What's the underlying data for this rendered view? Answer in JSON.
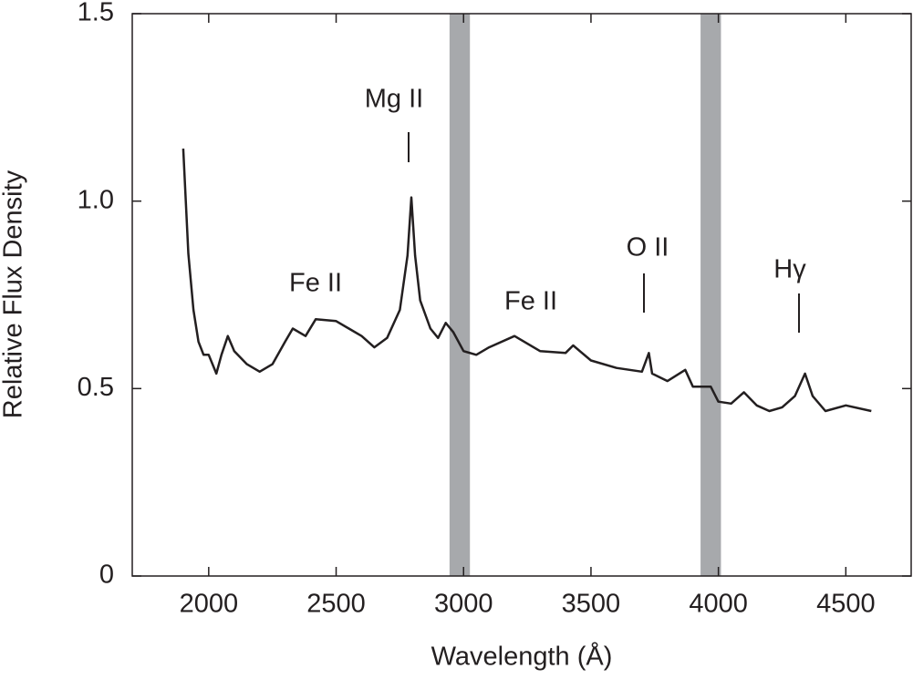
{
  "chart_data": {
    "type": "line",
    "xlabel": "Wavelength  (Å)",
    "ylabel": "Relative Flux Density",
    "xlim": [
      1700,
      4760
    ],
    "ylim": [
      0,
      1.5
    ],
    "xticks": [
      2000,
      2500,
      3000,
      3500,
      4000,
      4500
    ],
    "yticks": [
      0,
      0.5,
      {
        "value": 1,
        "label": "1.0"
      },
      1.5
    ],
    "color": "#231f20",
    "shaded_regions": [
      [
        2945,
        3025
      ],
      [
        3930,
        4010
      ]
    ],
    "shade_color": "#a7a9ac",
    "annotations": [
      "Mg II",
      "Fe II",
      "Fe II",
      "O II",
      "Hγ"
    ],
    "x": [
      1900,
      1920,
      1940,
      1960,
      1980,
      2000,
      2030,
      2050,
      2075,
      2100,
      2150,
      2200,
      2250,
      2300,
      2330,
      2380,
      2420,
      2500,
      2550,
      2600,
      2650,
      2700,
      2750,
      2780,
      2795,
      2810,
      2830,
      2870,
      2900,
      2930,
      2960,
      3000,
      3050,
      3100,
      3200,
      3300,
      3400,
      3430,
      3500,
      3600,
      3700,
      3727,
      3740,
      3800,
      3870,
      3900,
      3970,
      4000,
      4050,
      4100,
      4150,
      4200,
      4250,
      4300,
      4340,
      4370,
      4420,
      4500,
      4600
    ],
    "values": [
      1.14,
      0.86,
      0.71,
      0.625,
      0.59,
      0.59,
      0.54,
      0.59,
      0.64,
      0.6,
      0.565,
      0.545,
      0.565,
      0.625,
      0.66,
      0.64,
      0.685,
      0.68,
      0.66,
      0.64,
      0.61,
      0.635,
      0.71,
      0.855,
      1.01,
      0.855,
      0.735,
      0.66,
      0.635,
      0.675,
      0.65,
      0.6,
      0.59,
      0.61,
      0.64,
      0.6,
      0.595,
      0.615,
      0.575,
      0.555,
      0.545,
      0.595,
      0.54,
      0.52,
      0.55,
      0.505,
      0.505,
      0.465,
      0.46,
      0.49,
      0.455,
      0.44,
      0.45,
      0.48,
      0.54,
      0.48,
      0.44,
      0.455,
      0.44
    ]
  }
}
